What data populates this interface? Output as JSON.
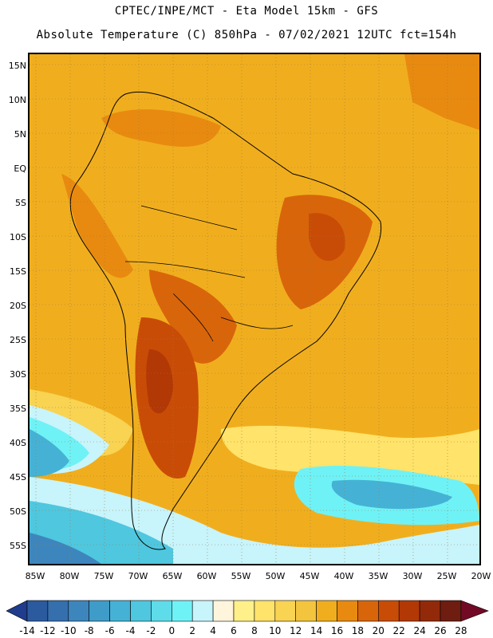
{
  "header": {
    "line1": "CPTEC/INPE/MCT -  Eta Model 15km - GFS",
    "line2": "Absolute Temperature (C) 850hPa - 07/02/2021 12UTC fct=154h"
  },
  "map": {
    "lat_labels": [
      "15N",
      "10N",
      "5N",
      "EQ",
      "5S",
      "10S",
      "15S",
      "20S",
      "25S",
      "30S",
      "35S",
      "40S",
      "45S",
      "50S",
      "55S"
    ],
    "lon_labels": [
      "85W",
      "80W",
      "75W",
      "70W",
      "65W",
      "60W",
      "55W",
      "50W",
      "45W",
      "40W",
      "35W",
      "30W",
      "25W",
      "20W"
    ]
  },
  "colorbar": {
    "ticks": [
      "-14",
      "-12",
      "-10",
      "-8",
      "-6",
      "-4",
      "-2",
      "0",
      "2",
      "4",
      "6",
      "8",
      "10",
      "12",
      "14",
      "16",
      "18",
      "20",
      "22",
      "24",
      "26",
      "28"
    ],
    "colors": [
      "#1f3d8c",
      "#2c5a9e",
      "#356fae",
      "#3d86bd",
      "#3f9cc8",
      "#45b2d5",
      "#4fc7df",
      "#5edcea",
      "#6ff2f6",
      "#c8f4fb",
      "#fff5dc",
      "#fff08a",
      "#ffe36a",
      "#f9d352",
      "#f3c43e",
      "#f0ae1e",
      "#e88a10",
      "#d9650a",
      "#c94c06",
      "#b23806",
      "#922a0a",
      "#6e1d10",
      "#720a26"
    ]
  }
}
